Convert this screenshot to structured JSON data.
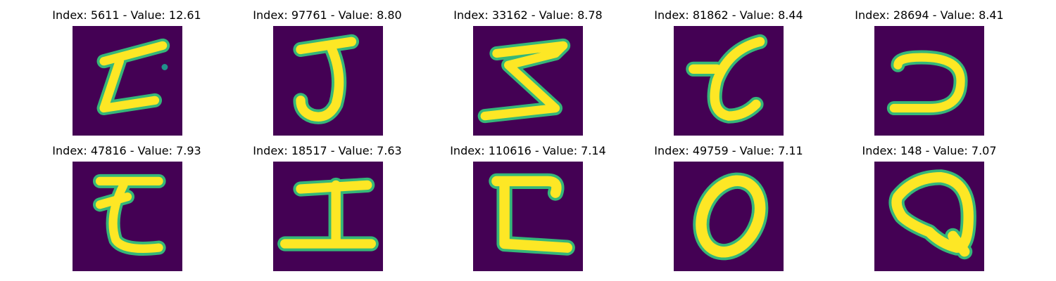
{
  "figure": {
    "panels": [
      {
        "title": "Index: 5611 - Value: 12.61",
        "glyph": "z-with-dot"
      },
      {
        "title": "Index: 97761 - Value: 8.80",
        "glyph": "j"
      },
      {
        "title": "Index: 33162 - Value: 8.78",
        "glyph": "z"
      },
      {
        "title": "Index: 81862 - Value: 8.44",
        "glyph": "t-curve"
      },
      {
        "title": "Index: 28694 - Value: 8.41",
        "glyph": "hook-c"
      },
      {
        "title": "Index: 47816 - Value: 7.93",
        "glyph": "z-cursive"
      },
      {
        "title": "Index: 18517 - Value: 7.63",
        "glyph": "i-serif"
      },
      {
        "title": "Index: 110616 - Value: 7.14",
        "glyph": "c-box"
      },
      {
        "title": "Index: 49759 - Value: 7.11",
        "glyph": "o"
      },
      {
        "title": "Index: 148 - Value: 7.07",
        "glyph": "q"
      }
    ],
    "colors": {
      "background": "#440154",
      "stroke": "#fde725",
      "edge": "#35b779"
    }
  }
}
